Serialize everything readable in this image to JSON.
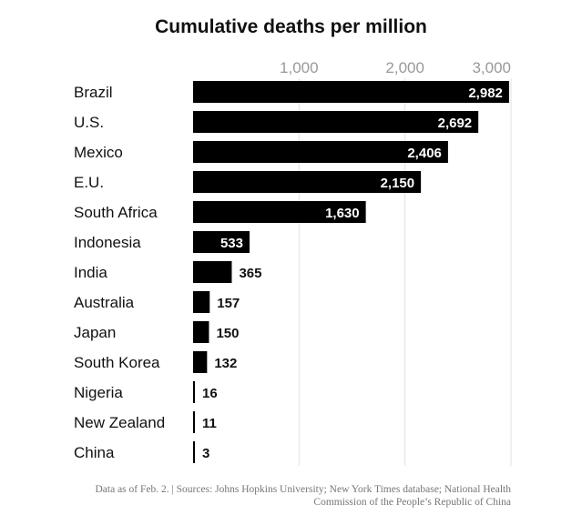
{
  "chart_data": {
    "type": "bar",
    "orientation": "horizontal",
    "title": "Cumulative deaths per million",
    "categories": [
      "Brazil",
      "U.S.",
      "Mexico",
      "E.U.",
      "South Africa",
      "Indonesia",
      "India",
      "Australia",
      "Japan",
      "South Korea",
      "Nigeria",
      "New Zealand",
      "China"
    ],
    "values": [
      2982,
      2692,
      2406,
      2150,
      1630,
      533,
      365,
      157,
      150,
      132,
      16,
      11,
      3
    ],
    "value_labels": [
      "2,982",
      "2,692",
      "2,406",
      "2,150",
      "1,630",
      "533",
      "365",
      "157",
      "150",
      "132",
      "16",
      "11",
      "3"
    ],
    "xticks": [
      1000,
      2000,
      3000
    ],
    "xtick_labels": [
      "1,000",
      "2,000",
      "3,000"
    ],
    "xlim": [
      0,
      3000
    ],
    "grid": true,
    "tick_position": "top",
    "bar_color": "#000000"
  },
  "note_line1": "Data as of Feb. 2. | Sources: Johns Hopkins University; New York Times database; National Health",
  "note_line2": "Commission of the People’s Republic of China"
}
